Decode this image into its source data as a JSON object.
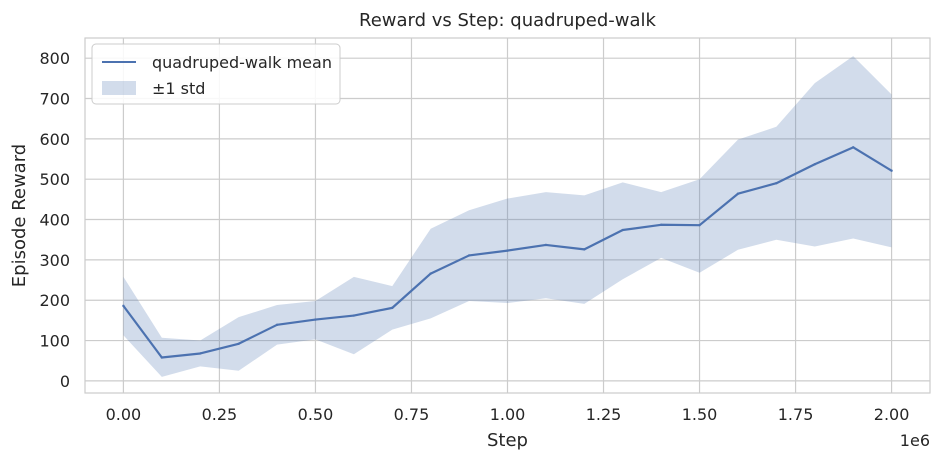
{
  "chart_data": {
    "type": "line",
    "title": "Reward vs Step: quadruped-walk",
    "xlabel": "Step",
    "ylabel": "Episode Reward",
    "x_offset_label": "1e6",
    "xlim": [
      -100000,
      2100000
    ],
    "ylim": [
      -30,
      850
    ],
    "x_ticks": [
      0,
      250000,
      500000,
      750000,
      1000000,
      1250000,
      1500000,
      1750000,
      2000000
    ],
    "x_tick_labels": [
      "0.00",
      "0.25",
      "0.50",
      "0.75",
      "1.00",
      "1.25",
      "1.50",
      "1.75",
      "2.00"
    ],
    "y_ticks": [
      0,
      100,
      200,
      300,
      400,
      500,
      600,
      700,
      800
    ],
    "y_tick_labels": [
      "0",
      "100",
      "200",
      "300",
      "400",
      "500",
      "600",
      "700",
      "800"
    ],
    "grid": true,
    "legend_position": "top-left",
    "colors": {
      "line": "#4c72b0",
      "band": "#4c72b0",
      "grid": "#cccccc",
      "frame": "#cccccc"
    },
    "x": [
      0,
      100000,
      200000,
      300000,
      400000,
      500000,
      600000,
      700000,
      800000,
      900000,
      1000000,
      1100000,
      1200000,
      1300000,
      1400000,
      1500000,
      1600000,
      1700000,
      1800000,
      1900000,
      2000000
    ],
    "series": [
      {
        "name": "quadruped-walk mean",
        "values": [
          186,
          58,
          68,
          92,
          139,
          152,
          162,
          181,
          266,
          311,
          323,
          337,
          326,
          374,
          387,
          386,
          464,
          490,
          537,
          579,
          521
        ]
      }
    ],
    "band": {
      "name": "±1 std",
      "upper": [
        258,
        107,
        100,
        158,
        188,
        198,
        258,
        235,
        377,
        423,
        452,
        468,
        460,
        492,
        468,
        500,
        598,
        630,
        738,
        805,
        710
      ],
      "lower": [
        113,
        10,
        36,
        25,
        90,
        103,
        66,
        127,
        155,
        198,
        193,
        205,
        191,
        252,
        305,
        268,
        325,
        350,
        333,
        353,
        331
      ]
    }
  }
}
